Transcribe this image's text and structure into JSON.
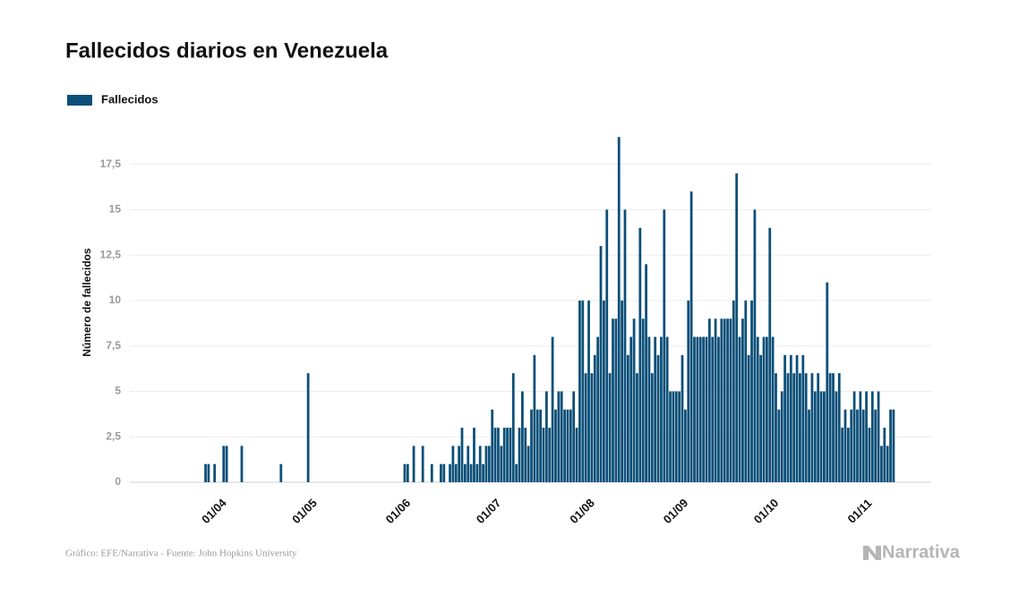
{
  "chart_data": {
    "type": "bar",
    "title": "Fallecidos diarios en Venezuela",
    "y_label": "Número de fallecidos",
    "source": "Gráfico: EFE/Narrativa - Fuente: John Hopkins University",
    "logo": "Narrativa",
    "categories": [
      null,
      null,
      null,
      null,
      null,
      null,
      null,
      null,
      null,
      null,
      null,
      null,
      null,
      null,
      null,
      null,
      null,
      null,
      "01/04",
      null,
      null,
      null,
      null,
      null,
      null,
      null,
      null,
      null,
      null,
      null,
      null,
      null,
      null,
      null,
      null,
      null,
      null,
      null,
      null,
      null,
      null,
      null,
      null,
      null,
      null,
      null,
      null,
      null,
      "01/05",
      null,
      null,
      null,
      null,
      null,
      null,
      null,
      null,
      null,
      null,
      null,
      null,
      null,
      null,
      null,
      null,
      null,
      null,
      null,
      null,
      null,
      null,
      null,
      null,
      null,
      null,
      null,
      null,
      null,
      null,
      "01/06",
      null,
      null,
      null,
      null,
      null,
      null,
      null,
      null,
      null,
      null,
      null,
      null,
      null,
      null,
      null,
      null,
      null,
      null,
      null,
      null,
      null,
      null,
      null,
      null,
      null,
      null,
      null,
      null,
      null,
      "01/07",
      null,
      null,
      null,
      null,
      null,
      null,
      null,
      null,
      null,
      null,
      null,
      null,
      null,
      null,
      null,
      null,
      null,
      null,
      null,
      null,
      null,
      null,
      null,
      null,
      null,
      null,
      null,
      null,
      null,
      null,
      "01/08",
      null,
      null,
      null,
      null,
      null,
      null,
      null,
      null,
      null,
      null,
      null,
      null,
      null,
      null,
      null,
      null,
      null,
      null,
      null,
      null,
      null,
      null,
      null,
      null,
      null,
      null,
      null,
      null,
      null,
      null,
      "01/09",
      null,
      null,
      null,
      null,
      null,
      null,
      null,
      null,
      null,
      null,
      null,
      null,
      null,
      null,
      null,
      null,
      null,
      null,
      null,
      null,
      null,
      null,
      null,
      null,
      null,
      null,
      null,
      null,
      null,
      "01/10",
      null,
      null,
      null,
      null,
      null,
      null,
      null,
      null,
      null,
      null,
      null,
      null,
      null,
      null,
      null,
      null,
      null,
      null,
      null,
      null,
      null,
      null,
      null,
      null,
      null,
      null,
      null,
      null,
      null,
      null,
      "01/11",
      null,
      null,
      null,
      null,
      null,
      null,
      null,
      null,
      null,
      null,
      null
    ],
    "series": [
      {
        "name": "Fallecidos",
        "color": "#0b4f78",
        "values": [
          0,
          0,
          0,
          0,
          0,
          0,
          0,
          0,
          0,
          0,
          0,
          0,
          0,
          0,
          0,
          1,
          1,
          0,
          1,
          0,
          0,
          2,
          2,
          0,
          0,
          0,
          0,
          2,
          0,
          0,
          0,
          0,
          0,
          0,
          0,
          0,
          0,
          0,
          0,
          0,
          1,
          0,
          0,
          0,
          0,
          0,
          0,
          0,
          0,
          6,
          0,
          0,
          0,
          0,
          0,
          0,
          0,
          0,
          0,
          0,
          0,
          0,
          0,
          0,
          0,
          0,
          0,
          0,
          0,
          0,
          0,
          0,
          0,
          0,
          0,
          0,
          0,
          0,
          0,
          0,
          0,
          1,
          1,
          0,
          2,
          0,
          0,
          2,
          0,
          0,
          1,
          0,
          0,
          1,
          1,
          0,
          1,
          2,
          1,
          2,
          3,
          1,
          2,
          1,
          3,
          1,
          2,
          1,
          2,
          2,
          4,
          3,
          3,
          2,
          3,
          3,
          3,
          6,
          1,
          3,
          5,
          3,
          2,
          4,
          7,
          4,
          4,
          3,
          5,
          3,
          8,
          4,
          5,
          5,
          4,
          4,
          4,
          5,
          3,
          10,
          10,
          6,
          10,
          6,
          7,
          8,
          13,
          10,
          15,
          6,
          9,
          9,
          19,
          10,
          15,
          7,
          8,
          9,
          6,
          14,
          9,
          12,
          8,
          6,
          8,
          7,
          8,
          15,
          8,
          5,
          5,
          5,
          5,
          7,
          4,
          10,
          16,
          8,
          8,
          8,
          8,
          8,
          9,
          8,
          9,
          8,
          9,
          9,
          9,
          9,
          10,
          17,
          8,
          9,
          10,
          7,
          10,
          15,
          8,
          7,
          8,
          8,
          14,
          8,
          6,
          4,
          5,
          7,
          6,
          7,
          6,
          7,
          6,
          7,
          6,
          4,
          6,
          5,
          6,
          5,
          5,
          11,
          6,
          6,
          5,
          6,
          3,
          4,
          3,
          4,
          5,
          4,
          5,
          4,
          5,
          3,
          5,
          4,
          5,
          2,
          3,
          2,
          4,
          4
        ]
      }
    ],
    "ylim": [
      0,
      19.5
    ],
    "yticks": [
      0,
      {
        "value": 2.5,
        "label": "2,5"
      },
      5,
      {
        "value": 7.5,
        "label": "7,5"
      },
      10,
      {
        "value": 12.5,
        "label": "12,5"
      },
      15,
      {
        "value": 17.5,
        "label": "17,5"
      }
    ],
    "grid": true
  }
}
